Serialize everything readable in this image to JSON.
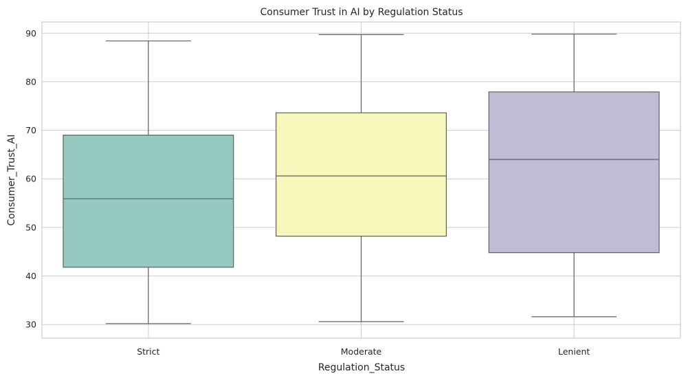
{
  "chart_data": {
    "type": "box",
    "title": "Consumer Trust in AI by Regulation Status",
    "xlabel": "Regulation_Status",
    "ylabel": "Consumer_Trust_AI",
    "ylim": [
      27.2,
      92.3
    ],
    "yticks": [
      30,
      40,
      50,
      60,
      70,
      80,
      90
    ],
    "grid": true,
    "categories": [
      "Strict",
      "Moderate",
      "Lenient"
    ],
    "series": [
      {
        "category": "Strict",
        "min": 30.2,
        "q1": 41.8,
        "median": 55.9,
        "q3": 69.0,
        "max": 88.4,
        "color": "#96c9c0"
      },
      {
        "category": "Moderate",
        "min": 30.6,
        "q1": 48.2,
        "median": 60.6,
        "q3": 73.6,
        "max": 89.7,
        "color": "#f7f6bb"
      },
      {
        "category": "Lenient",
        "min": 31.6,
        "q1": 44.8,
        "median": 64.0,
        "q3": 77.9,
        "max": 89.8,
        "color": "#c1bcd6"
      }
    ]
  }
}
